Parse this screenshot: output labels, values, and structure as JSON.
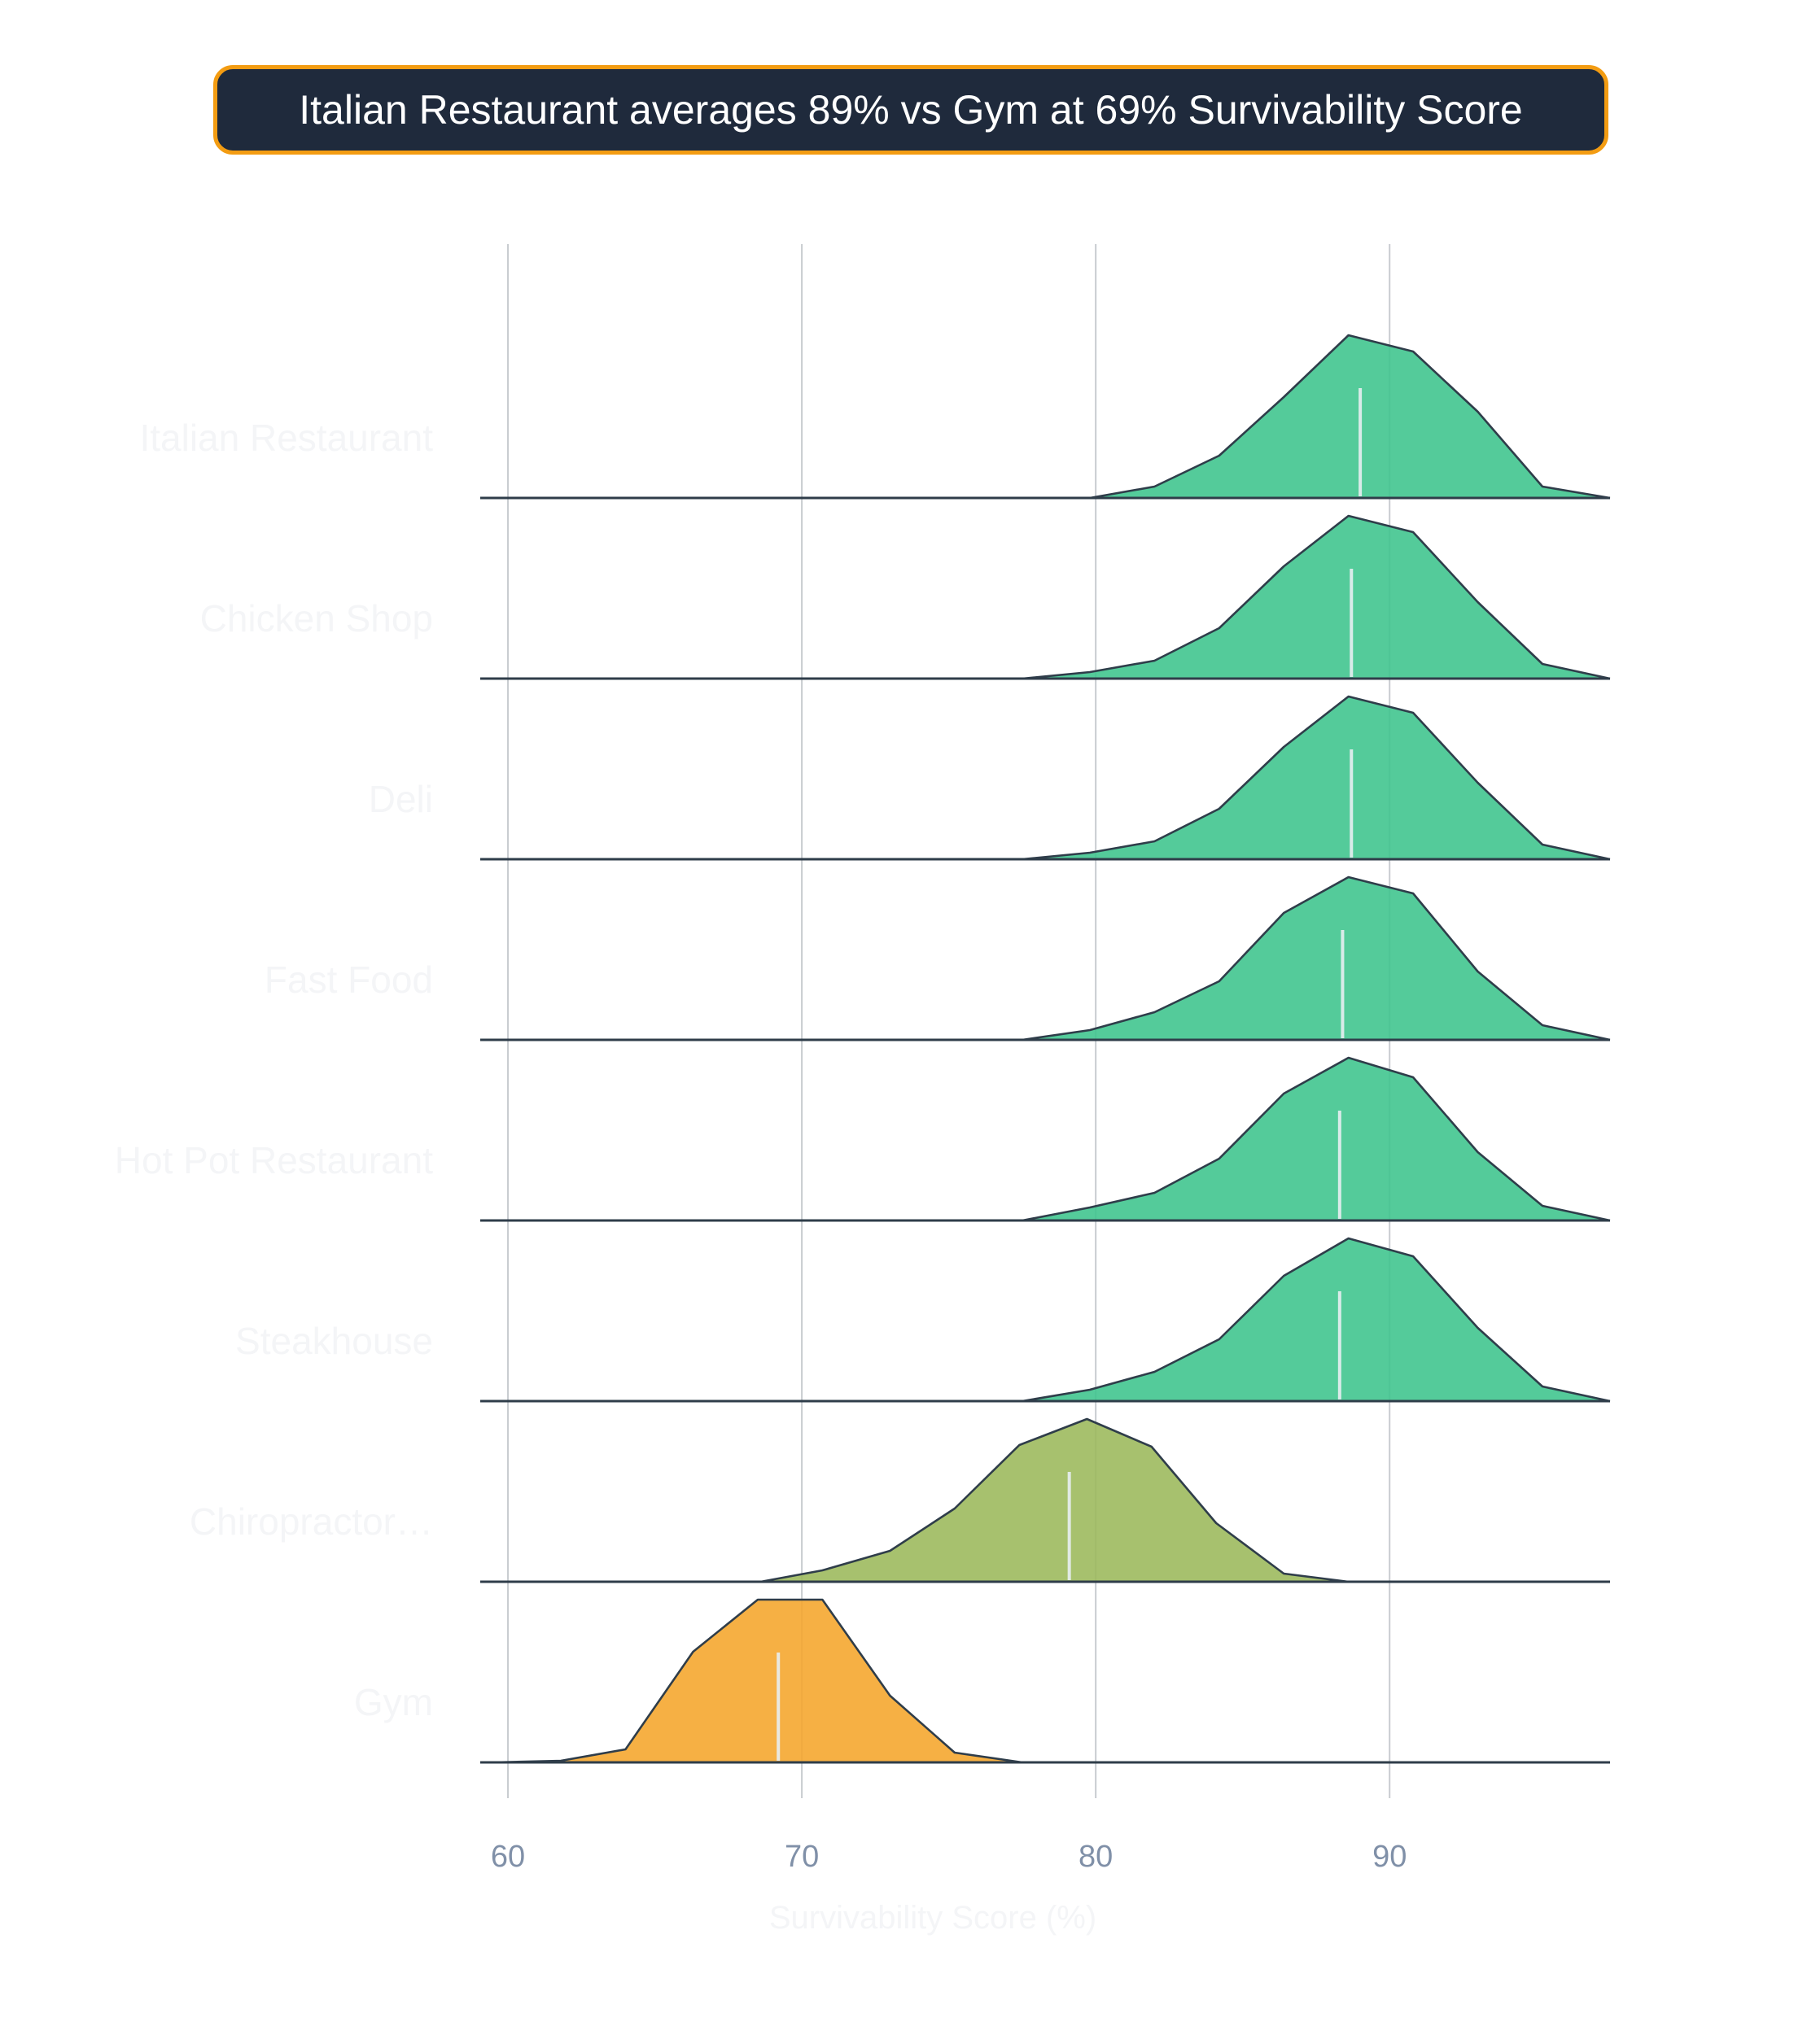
{
  "chart_data": {
    "type": "ridgeline",
    "title": "Italian Restaurant averages 89% vs Gym at 69% Survivability Score",
    "xlabel": "Survivability Score (%)",
    "xlim": [
      59.5,
      97.5
    ],
    "xticks": [
      60,
      70,
      80,
      90
    ],
    "grid": true,
    "colors": {
      "high": "#3cc48c",
      "mid": "#9bb85a",
      "low": "#f5a52a",
      "outline": "#2f3d4a",
      "median": "#e8eef2",
      "title_bg": "#1f2a3c",
      "title_border": "#f39c12"
    },
    "series": [
      {
        "name": "Italian Restaurant",
        "color_key": "high",
        "mean": 89.0,
        "points": [
          [
            79.8,
            0
          ],
          [
            82,
            0.07
          ],
          [
            84.2,
            0.26
          ],
          [
            86.4,
            0.62
          ],
          [
            88.6,
            1.0
          ],
          [
            90.8,
            0.9
          ],
          [
            93,
            0.53
          ],
          [
            95.2,
            0.07
          ],
          [
            97.5,
            0
          ]
        ]
      },
      {
        "name": "Chicken Shop",
        "color_key": "high",
        "mean": 88.7,
        "points": [
          [
            77.5,
            0
          ],
          [
            79.8,
            0.04
          ],
          [
            82,
            0.11
          ],
          [
            84.2,
            0.31
          ],
          [
            86.4,
            0.69
          ],
          [
            88.6,
            1.0
          ],
          [
            90.8,
            0.9
          ],
          [
            93,
            0.47
          ],
          [
            95.2,
            0.09
          ],
          [
            97.5,
            0
          ]
        ]
      },
      {
        "name": "Deli",
        "color_key": "high",
        "mean": 88.7,
        "points": [
          [
            77.5,
            0
          ],
          [
            79.8,
            0.04
          ],
          [
            82,
            0.11
          ],
          [
            84.2,
            0.31
          ],
          [
            86.4,
            0.69
          ],
          [
            88.6,
            1.0
          ],
          [
            90.8,
            0.9
          ],
          [
            93,
            0.47
          ],
          [
            95.2,
            0.09
          ],
          [
            97.5,
            0
          ]
        ]
      },
      {
        "name": "Fast Food",
        "color_key": "high",
        "mean": 88.4,
        "points": [
          [
            77.5,
            0
          ],
          [
            79.8,
            0.06
          ],
          [
            82,
            0.17
          ],
          [
            84.2,
            0.36
          ],
          [
            86.4,
            0.78
          ],
          [
            88.6,
            1.0
          ],
          [
            90.8,
            0.9
          ],
          [
            93,
            0.42
          ],
          [
            95.2,
            0.09
          ],
          [
            97.5,
            0
          ]
        ]
      },
      {
        "name": "Hot Pot Restaurant",
        "color_key": "high",
        "mean": 88.3,
        "points": [
          [
            77.5,
            0
          ],
          [
            79.8,
            0.08
          ],
          [
            82,
            0.17
          ],
          [
            84.2,
            0.38
          ],
          [
            86.4,
            0.78
          ],
          [
            88.6,
            1.0
          ],
          [
            90.8,
            0.88
          ],
          [
            93,
            0.42
          ],
          [
            95.2,
            0.09
          ],
          [
            97.5,
            0
          ]
        ]
      },
      {
        "name": "Steakhouse",
        "color_key": "high",
        "mean": 88.3,
        "points": [
          [
            77.5,
            0
          ],
          [
            79.8,
            0.07
          ],
          [
            82,
            0.18
          ],
          [
            84.2,
            0.38
          ],
          [
            86.4,
            0.77
          ],
          [
            88.6,
            1.0
          ],
          [
            90.8,
            0.89
          ],
          [
            93,
            0.45
          ],
          [
            95.2,
            0.09
          ],
          [
            97.5,
            0
          ]
        ]
      },
      {
        "name": "Chiropractor…",
        "color_key": "mid",
        "mean": 79.1,
        "points": [
          [
            68.6,
            0
          ],
          [
            70.7,
            0.07
          ],
          [
            73,
            0.19
          ],
          [
            75.2,
            0.45
          ],
          [
            77.4,
            0.84
          ],
          [
            79.7,
            1.0
          ],
          [
            81.9,
            0.83
          ],
          [
            84.1,
            0.36
          ],
          [
            86.4,
            0.05
          ],
          [
            88.6,
            0
          ]
        ]
      },
      {
        "name": "Gym",
        "color_key": "low",
        "mean": 69.2,
        "points": [
          [
            59.5,
            0
          ],
          [
            61.8,
            0.01
          ],
          [
            64,
            0.08
          ],
          [
            66.3,
            0.68
          ],
          [
            68.5,
            1.0
          ],
          [
            70.7,
            1.0
          ],
          [
            73,
            0.41
          ],
          [
            75.2,
            0.06
          ],
          [
            77.5,
            0
          ]
        ]
      }
    ]
  }
}
